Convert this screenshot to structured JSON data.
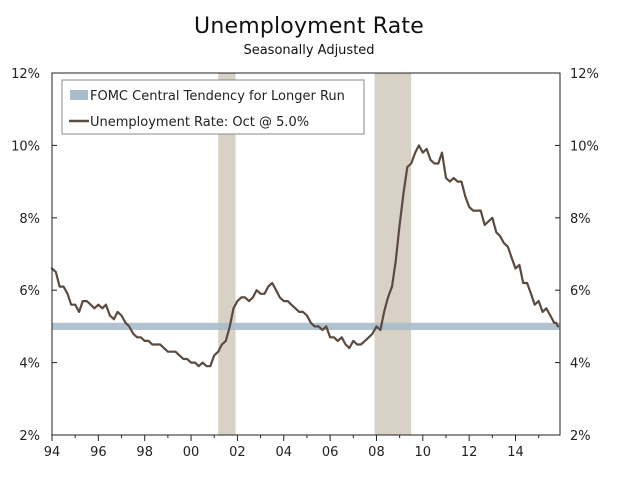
{
  "chart_data": {
    "type": "line",
    "title": "Unemployment Rate",
    "subtitle": "Seasonally Adjusted",
    "xlim": [
      1994.0,
      2015.92
    ],
    "ylim": [
      2,
      12
    ],
    "x_ticks": [
      {
        "x": 1994,
        "label": "94"
      },
      {
        "x": 1996,
        "label": "96"
      },
      {
        "x": 1998,
        "label": "98"
      },
      {
        "x": 2000,
        "label": "00"
      },
      {
        "x": 2002,
        "label": "02"
      },
      {
        "x": 2004,
        "label": "04"
      },
      {
        "x": 2006,
        "label": "06"
      },
      {
        "x": 2008,
        "label": "08"
      },
      {
        "x": 2010,
        "label": "10"
      },
      {
        "x": 2012,
        "label": "12"
      },
      {
        "x": 2014,
        "label": "14"
      }
    ],
    "y_ticks": [
      {
        "y": 2,
        "label": "2%"
      },
      {
        "y": 4,
        "label": "4%"
      },
      {
        "y": 6,
        "label": "6%"
      },
      {
        "y": 8,
        "label": "8%"
      },
      {
        "y": 10,
        "label": "10%"
      },
      {
        "y": 12,
        "label": "12%"
      }
    ],
    "recessions": [
      [
        2001.17,
        2001.92
      ],
      [
        2007.92,
        2009.5
      ]
    ],
    "fomc_band": {
      "name": "FOMC Central Tendency for Longer Run",
      "y": [
        4.9,
        5.1
      ],
      "color": "#a8bccb"
    },
    "series": [
      {
        "name": "Unemployment Rate: Oct @ 5.0%",
        "color": "#5a4a3f",
        "points": [
          [
            1994.0,
            6.6
          ],
          [
            1994.17,
            6.5
          ],
          [
            1994.33,
            6.1
          ],
          [
            1994.5,
            6.1
          ],
          [
            1994.67,
            5.9
          ],
          [
            1994.83,
            5.6
          ],
          [
            1995.0,
            5.6
          ],
          [
            1995.17,
            5.4
          ],
          [
            1995.33,
            5.7
          ],
          [
            1995.5,
            5.7
          ],
          [
            1995.67,
            5.6
          ],
          [
            1995.83,
            5.5
          ],
          [
            1996.0,
            5.6
          ],
          [
            1996.17,
            5.5
          ],
          [
            1996.33,
            5.6
          ],
          [
            1996.5,
            5.3
          ],
          [
            1996.67,
            5.2
          ],
          [
            1996.83,
            5.4
          ],
          [
            1997.0,
            5.3
          ],
          [
            1997.17,
            5.1
          ],
          [
            1997.33,
            5.0
          ],
          [
            1997.5,
            4.8
          ],
          [
            1997.67,
            4.7
          ],
          [
            1997.83,
            4.7
          ],
          [
            1998.0,
            4.6
          ],
          [
            1998.17,
            4.6
          ],
          [
            1998.33,
            4.5
          ],
          [
            1998.5,
            4.5
          ],
          [
            1998.67,
            4.5
          ],
          [
            1998.83,
            4.4
          ],
          [
            1999.0,
            4.3
          ],
          [
            1999.17,
            4.3
          ],
          [
            1999.33,
            4.3
          ],
          [
            1999.5,
            4.2
          ],
          [
            1999.67,
            4.1
          ],
          [
            1999.83,
            4.1
          ],
          [
            2000.0,
            4.0
          ],
          [
            2000.17,
            4.0
          ],
          [
            2000.33,
            3.9
          ],
          [
            2000.5,
            4.0
          ],
          [
            2000.67,
            3.9
          ],
          [
            2000.83,
            3.9
          ],
          [
            2001.0,
            4.2
          ],
          [
            2001.17,
            4.3
          ],
          [
            2001.33,
            4.5
          ],
          [
            2001.5,
            4.6
          ],
          [
            2001.67,
            5.0
          ],
          [
            2001.83,
            5.5
          ],
          [
            2002.0,
            5.7
          ],
          [
            2002.17,
            5.8
          ],
          [
            2002.33,
            5.8
          ],
          [
            2002.5,
            5.7
          ],
          [
            2002.67,
            5.8
          ],
          [
            2002.83,
            6.0
          ],
          [
            2003.0,
            5.9
          ],
          [
            2003.17,
            5.9
          ],
          [
            2003.33,
            6.1
          ],
          [
            2003.5,
            6.2
          ],
          [
            2003.67,
            6.0
          ],
          [
            2003.83,
            5.8
          ],
          [
            2004.0,
            5.7
          ],
          [
            2004.17,
            5.7
          ],
          [
            2004.33,
            5.6
          ],
          [
            2004.5,
            5.5
          ],
          [
            2004.67,
            5.4
          ],
          [
            2004.83,
            5.4
          ],
          [
            2005.0,
            5.3
          ],
          [
            2005.17,
            5.1
          ],
          [
            2005.33,
            5.0
          ],
          [
            2005.5,
            5.0
          ],
          [
            2005.67,
            4.9
          ],
          [
            2005.83,
            5.0
          ],
          [
            2006.0,
            4.7
          ],
          [
            2006.17,
            4.7
          ],
          [
            2006.33,
            4.6
          ],
          [
            2006.5,
            4.7
          ],
          [
            2006.67,
            4.5
          ],
          [
            2006.83,
            4.4
          ],
          [
            2007.0,
            4.6
          ],
          [
            2007.17,
            4.5
          ],
          [
            2007.33,
            4.5
          ],
          [
            2007.5,
            4.6
          ],
          [
            2007.67,
            4.7
          ],
          [
            2007.83,
            4.8
          ],
          [
            2008.0,
            5.0
          ],
          [
            2008.17,
            4.9
          ],
          [
            2008.33,
            5.4
          ],
          [
            2008.5,
            5.8
          ],
          [
            2008.67,
            6.1
          ],
          [
            2008.83,
            6.8
          ],
          [
            2009.0,
            7.8
          ],
          [
            2009.17,
            8.7
          ],
          [
            2009.33,
            9.4
          ],
          [
            2009.5,
            9.5
          ],
          [
            2009.67,
            9.8
          ],
          [
            2009.83,
            10.0
          ],
          [
            2010.0,
            9.8
          ],
          [
            2010.17,
            9.9
          ],
          [
            2010.33,
            9.6
          ],
          [
            2010.5,
            9.5
          ],
          [
            2010.67,
            9.5
          ],
          [
            2010.83,
            9.8
          ],
          [
            2011.0,
            9.1
          ],
          [
            2011.17,
            9.0
          ],
          [
            2011.33,
            9.1
          ],
          [
            2011.5,
            9.0
          ],
          [
            2011.67,
            9.0
          ],
          [
            2011.83,
            8.6
          ],
          [
            2012.0,
            8.3
          ],
          [
            2012.17,
            8.2
          ],
          [
            2012.33,
            8.2
          ],
          [
            2012.5,
            8.2
          ],
          [
            2012.67,
            7.8
          ],
          [
            2012.83,
            7.9
          ],
          [
            2013.0,
            8.0
          ],
          [
            2013.17,
            7.6
          ],
          [
            2013.33,
            7.5
          ],
          [
            2013.5,
            7.3
          ],
          [
            2013.67,
            7.2
          ],
          [
            2013.83,
            6.9
          ],
          [
            2014.0,
            6.6
          ],
          [
            2014.17,
            6.7
          ],
          [
            2014.33,
            6.2
          ],
          [
            2014.5,
            6.2
          ],
          [
            2014.67,
            5.9
          ],
          [
            2014.83,
            5.6
          ],
          [
            2015.0,
            5.7
          ],
          [
            2015.17,
            5.4
          ],
          [
            2015.33,
            5.5
          ],
          [
            2015.5,
            5.3
          ],
          [
            2015.67,
            5.1
          ],
          [
            2015.75,
            5.1
          ],
          [
            2015.83,
            5.0
          ]
        ]
      }
    ],
    "legend": {
      "placement": "top-left",
      "entries": [
        "FOMC Central Tendency for Longer Run",
        "Unemployment Rate: Oct @ 5.0%"
      ]
    }
  }
}
